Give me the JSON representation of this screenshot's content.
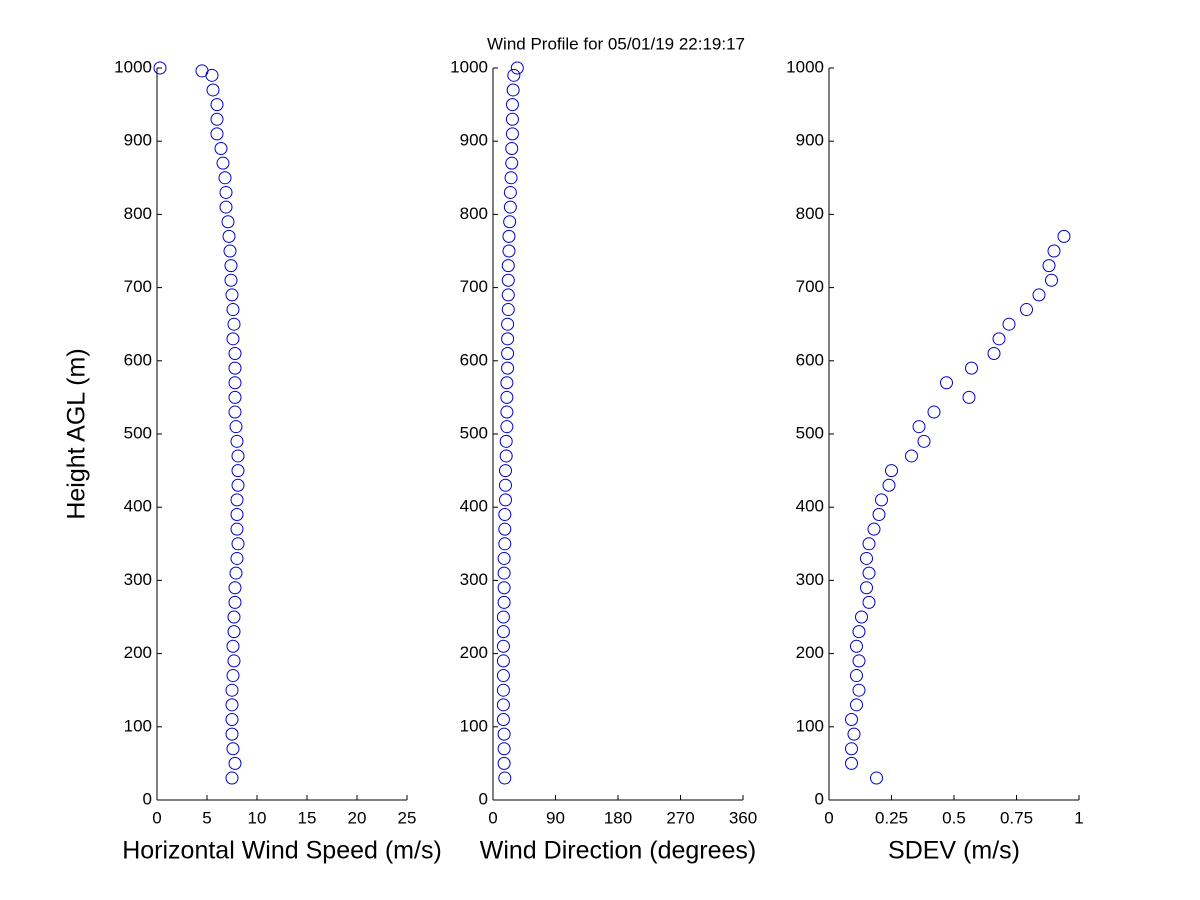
{
  "chart_data": [
    {
      "type": "scatter",
      "ylabel": "Height AGL (m)",
      "xlabel": "Horizontal Wind Speed (m/s)",
      "color": "#0000cc",
      "xlim": [
        0,
        25
      ],
      "xticks": [
        0,
        5,
        10,
        15,
        20,
        25
      ],
      "ylim": [
        0,
        1000
      ],
      "yticks": [
        0,
        100,
        200,
        300,
        400,
        500,
        600,
        700,
        800,
        900,
        1000
      ],
      "x": [
        7.5,
        7.8,
        7.6,
        7.5,
        7.5,
        7.5,
        7.5,
        7.6,
        7.7,
        7.6,
        7.7,
        7.7,
        7.8,
        7.8,
        7.9,
        8.0,
        8.1,
        8.0,
        8.0,
        8.0,
        8.1,
        8.1,
        8.1,
        8.0,
        7.9,
        7.8,
        7.8,
        7.8,
        7.8,
        7.8,
        7.6,
        7.7,
        7.6,
        7.5,
        7.4,
        7.4,
        7.3,
        7.2,
        7.1,
        6.9,
        6.9,
        6.8,
        6.6,
        6.4,
        6.0,
        6.0,
        6.0,
        5.6,
        5.5,
        4.5,
        0.3
      ],
      "values": [
        30,
        50,
        70,
        90,
        110,
        130,
        150,
        170,
        190,
        210,
        230,
        250,
        270,
        290,
        310,
        330,
        350,
        370,
        390,
        410,
        430,
        450,
        470,
        490,
        510,
        530,
        550,
        570,
        590,
        610,
        630,
        650,
        670,
        690,
        710,
        730,
        750,
        770,
        790,
        810,
        830,
        850,
        870,
        890,
        910,
        930,
        950,
        970,
        990,
        996,
        1000
      ]
    },
    {
      "type": "scatter",
      "title": "Wind Profile for  05/01/19 22:19:17",
      "xlabel": "Wind Direction (degrees)",
      "color": "#0000cc",
      "xlim": [
        0,
        360
      ],
      "xticks": [
        0,
        90,
        180,
        270,
        360
      ],
      "ylim": [
        0,
        1000
      ],
      "yticks": [
        0,
        100,
        200,
        300,
        400,
        500,
        600,
        700,
        800,
        900,
        1000
      ],
      "x": [
        17,
        16,
        16,
        16,
        15,
        15,
        15,
        15,
        15,
        15,
        15,
        15,
        16,
        16,
        16,
        16,
        17,
        17,
        17,
        18,
        18,
        18,
        19,
        19,
        20,
        20,
        20,
        20,
        21,
        21,
        21,
        21,
        22,
        22,
        22,
        22,
        23,
        23,
        24,
        25,
        25,
        26,
        27,
        27,
        28,
        28,
        28,
        29,
        30,
        35
      ],
      "values": [
        30,
        50,
        70,
        90,
        110,
        130,
        150,
        170,
        190,
        210,
        230,
        250,
        270,
        290,
        310,
        330,
        350,
        370,
        390,
        410,
        430,
        450,
        470,
        490,
        510,
        530,
        550,
        570,
        590,
        610,
        630,
        650,
        670,
        690,
        710,
        730,
        750,
        770,
        790,
        810,
        830,
        850,
        870,
        890,
        910,
        930,
        950,
        970,
        990,
        1000
      ]
    },
    {
      "type": "scatter",
      "xlabel": "SDEV  (m/s)",
      "color": "#0000cc",
      "xlim": [
        0,
        1
      ],
      "xticks": [
        0,
        0.25,
        0.5,
        0.75,
        1
      ],
      "ylim": [
        0,
        1000
      ],
      "yticks": [
        0,
        100,
        200,
        300,
        400,
        500,
        600,
        700,
        800,
        900,
        1000
      ],
      "x": [
        0.19,
        0.09,
        0.09,
        0.1,
        0.09,
        0.11,
        0.12,
        0.11,
        0.12,
        0.11,
        0.12,
        0.13,
        0.16,
        0.15,
        0.16,
        0.15,
        0.16,
        0.18,
        0.2,
        0.21,
        0.24,
        0.25,
        0.33,
        0.38,
        0.36,
        0.42,
        0.56,
        0.47,
        0.57,
        0.66,
        0.68,
        0.72,
        0.79,
        0.84,
        0.89,
        0.88,
        0.9,
        0.94
      ],
      "values": [
        30,
        50,
        70,
        90,
        110,
        130,
        150,
        170,
        190,
        210,
        230,
        250,
        270,
        290,
        310,
        330,
        350,
        370,
        390,
        410,
        430,
        450,
        470,
        490,
        510,
        530,
        550,
        570,
        590,
        610,
        630,
        650,
        670,
        690,
        710,
        730,
        750,
        770
      ]
    }
  ]
}
